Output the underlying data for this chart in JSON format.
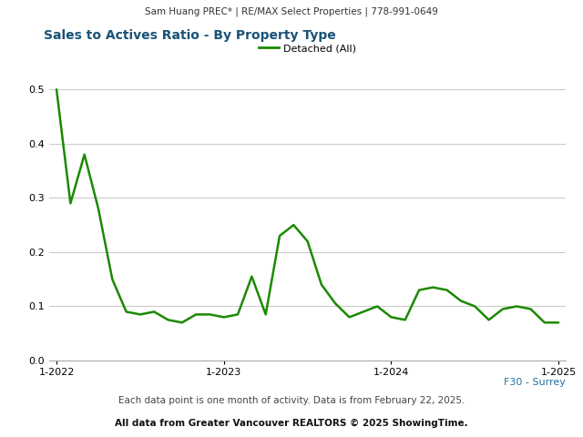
{
  "header_text": "Sam Huang PREC* | RE/MAX Select Properties | 778-991-0649",
  "title": "Sales to Actives Ratio - By Property Type",
  "legend_label": "Detached (All)",
  "footer_text1": "Each data point is one month of activity. Data is from February 22, 2025.",
  "footer_text2": "All data from Greater Vancouver REALTORS © 2025 ShowingTime.",
  "region_label": "F30 - Surrey",
  "line_color": "#1a8a00",
  "title_color": "#1a5276",
  "region_color": "#2471a3",
  "header_bg": "#e8e8e8",
  "plot_bg": "#ffffff",
  "grid_color": "#cccccc",
  "x_tick_labels": [
    "1-2022",
    "1-2023",
    "1-2024",
    "1-2025"
  ],
  "x_tick_positions": [
    0,
    12,
    24,
    36
  ],
  "ylim": [
    0.0,
    0.52
  ],
  "yticks": [
    0.0,
    0.1,
    0.2,
    0.3,
    0.4,
    0.5
  ],
  "values": [
    0.5,
    0.29,
    0.38,
    0.28,
    0.15,
    0.09,
    0.085,
    0.09,
    0.075,
    0.07,
    0.085,
    0.085,
    0.08,
    0.085,
    0.155,
    0.085,
    0.23,
    0.25,
    0.22,
    0.14,
    0.105,
    0.08,
    0.09,
    0.1,
    0.08,
    0.075,
    0.13,
    0.135,
    0.13,
    0.11,
    0.1,
    0.075,
    0.095,
    0.1,
    0.095,
    0.07,
    0.07
  ]
}
